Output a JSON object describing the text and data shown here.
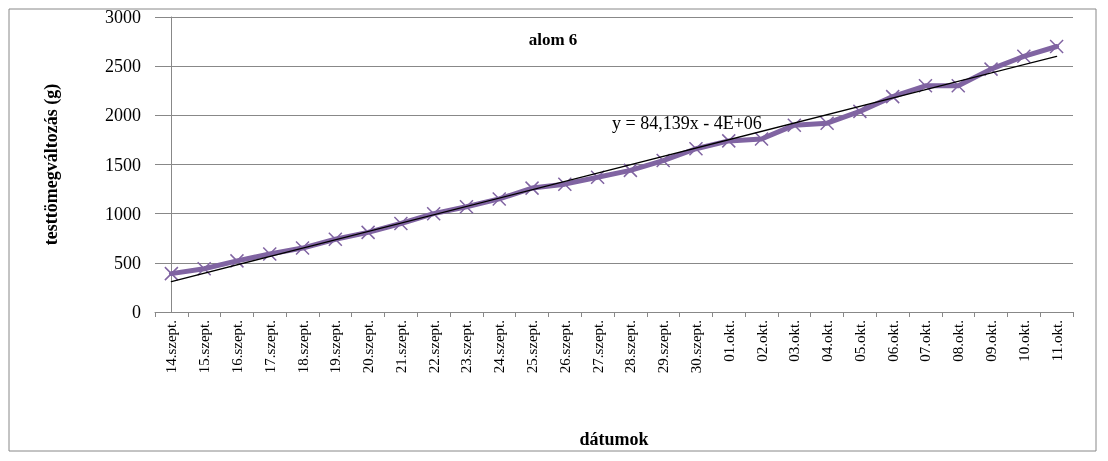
{
  "chart_data": {
    "type": "line",
    "title": "alom 6",
    "xlabel": "dátumok",
    "ylabel": "testtömegváltozás (g)",
    "categories": [
      "14.szept.",
      "15.szept.",
      "16.szept.",
      "17.szept.",
      "18.szept.",
      "19.szept.",
      "20.szept.",
      "21.szept.",
      "22.szept.",
      "23.szept.",
      "24.szept.",
      "25.szept.",
      "26.szept.",
      "27.szept.",
      "28.szept.",
      "29.szept.",
      "30.szept.",
      "01.okt.",
      "02.okt.",
      "03.okt.",
      "04.okt.",
      "05.okt.",
      "06.okt.",
      "07.okt.",
      "08.okt.",
      "09.okt.",
      "10.okt.",
      "11.okt."
    ],
    "series": [
      {
        "color": "#8064a2",
        "marker": "cross",
        "values": [
          390,
          440,
          520,
          590,
          650,
          740,
          810,
          900,
          1000,
          1070,
          1150,
          1260,
          1300,
          1370,
          1440,
          1540,
          1660,
          1740,
          1760,
          1900,
          1920,
          2040,
          2190,
          2300,
          2300,
          2470,
          2600,
          2700
        ]
      },
      {
        "color": "#000000",
        "marker": "none",
        "x": [
          "14.szept.",
          "11.okt."
        ],
        "values": [
          310,
          2600
        ]
      }
    ],
    "annotations": [
      "y = 84,139x - 4E+06"
    ],
    "ylim": [
      0,
      3000
    ],
    "yticks": [
      0,
      500,
      1000,
      1500,
      2000,
      2500,
      3000
    ],
    "grid": "y"
  }
}
